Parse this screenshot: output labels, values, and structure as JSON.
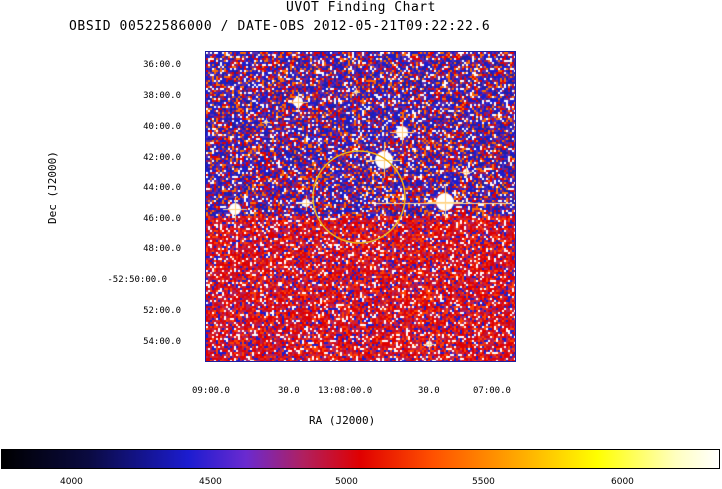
{
  "header": {
    "title": "UVOT Finding Chart",
    "subtitle": "OBSID 00522586000 / DATE-OBS 2012-05-21T09:22:22.6"
  },
  "axes": {
    "ylabel": "Dec (J2000)",
    "xlabel": "RA (J2000)",
    "yticks": [
      "36:00.0",
      "38:00.0",
      "40:00.0",
      "42:00.0",
      "44:00.0",
      "46:00.0",
      "48:00.0",
      "-52:50:00.0",
      "52:00.0",
      "54:00.0"
    ],
    "xticks": [
      "09:00.0",
      "30.0",
      "13:08:00.0",
      "30.0",
      "07:00.0"
    ]
  },
  "colorbar": {
    "ticks": [
      "4000",
      "4500",
      "5000",
      "5500",
      "6000"
    ]
  },
  "image": {
    "colormap": [
      "#000000",
      "#1c1cd0",
      "#e00000",
      "#ffff00",
      "#ffffff"
    ],
    "circle_color": "#e8b020"
  }
}
